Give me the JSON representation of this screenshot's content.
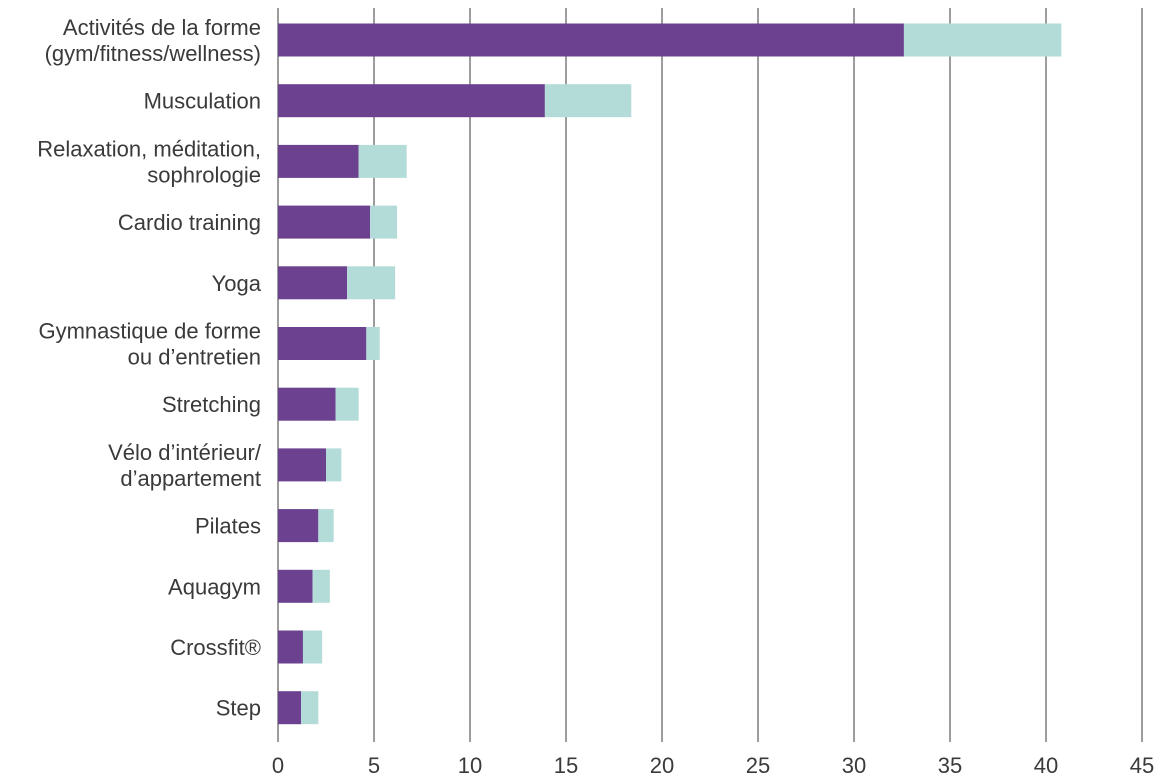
{
  "chart_data": {
    "type": "bar",
    "orientation": "horizontal",
    "stacked": true,
    "categories": [
      [
        "Activités de la forme",
        "(gym/fitness/wellness)"
      ],
      [
        "Musculation"
      ],
      [
        "Relaxation, méditation,",
        "sophrologie"
      ],
      [
        "Cardio training"
      ],
      [
        "Yoga"
      ],
      [
        "Gymnastique de forme",
        "ou d’entretien"
      ],
      [
        "Stretching"
      ],
      [
        "Vélo d’intérieur/",
        "d’appartement"
      ],
      [
        "Pilates"
      ],
      [
        "Aquagym"
      ],
      [
        "Crossfit®"
      ],
      [
        "Step"
      ]
    ],
    "series": [
      {
        "color": "#6b4190",
        "values": [
          32.6,
          13.9,
          4.2,
          4.8,
          3.6,
          4.6,
          3.0,
          2.5,
          2.1,
          1.8,
          1.3,
          1.2
        ]
      },
      {
        "color": "#b3dcd9",
        "values": [
          8.2,
          4.5,
          2.5,
          1.4,
          2.5,
          0.7,
          1.2,
          0.8,
          0.8,
          0.9,
          1.0,
          0.9
        ]
      }
    ],
    "xlim": [
      0,
      45
    ],
    "xticks": [
      0,
      5,
      10,
      15,
      20,
      25,
      30,
      35,
      40,
      45
    ],
    "grid": true,
    "gridColor": "#666666",
    "title": "",
    "xlabel": "",
    "ylabel": ""
  }
}
